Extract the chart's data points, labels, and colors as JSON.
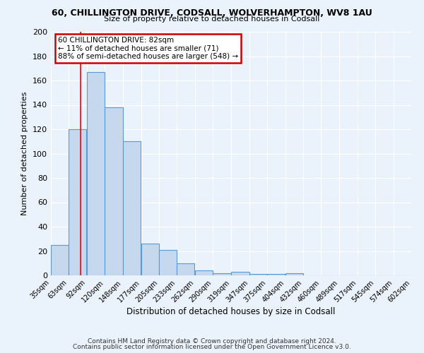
{
  "title1": "60, CHILLINGTON DRIVE, CODSALL, WOLVERHAMPTON, WV8 1AU",
  "title2": "Size of property relative to detached houses in Codsall",
  "xlabel": "Distribution of detached houses by size in Codsall",
  "ylabel": "Number of detached properties",
  "bar_left_edges": [
    35,
    63,
    92,
    120,
    148,
    177,
    205,
    233,
    262,
    290,
    319,
    347,
    375,
    404,
    432,
    460,
    489,
    517,
    545,
    574
  ],
  "bar_heights": [
    25,
    120,
    167,
    138,
    110,
    26,
    21,
    10,
    4,
    2,
    3,
    1,
    1,
    2,
    0,
    0,
    0,
    0,
    0,
    0
  ],
  "bin_width": 28,
  "tick_labels": [
    "35sqm",
    "63sqm",
    "92sqm",
    "120sqm",
    "148sqm",
    "177sqm",
    "205sqm",
    "233sqm",
    "262sqm",
    "290sqm",
    "319sqm",
    "347sqm",
    "375sqm",
    "404sqm",
    "432sqm",
    "460sqm",
    "489sqm",
    "517sqm",
    "545sqm",
    "574sqm",
    "602sqm"
  ],
  "bar_color": "#c5d8ed",
  "bar_edge_color": "#5b9bd5",
  "ylim": [
    0,
    200
  ],
  "yticks": [
    0,
    20,
    40,
    60,
    80,
    100,
    120,
    140,
    160,
    180,
    200
  ],
  "red_line_x": 82,
  "annotation_title": "60 CHILLINGTON DRIVE: 82sqm",
  "annotation_line1": "← 11% of detached houses are smaller (71)",
  "annotation_line2": "88% of semi-detached houses are larger (548) →",
  "annotation_box_color": "#ffffff",
  "annotation_box_edge": "#cc0000",
  "footer_line1": "Contains HM Land Registry data © Crown copyright and database right 2024.",
  "footer_line2": "Contains public sector information licensed under the Open Government Licence v3.0.",
  "bg_color": "#eaf2fb",
  "plot_bg_color": "#eaf2fb",
  "grid_color": "#ffffff"
}
